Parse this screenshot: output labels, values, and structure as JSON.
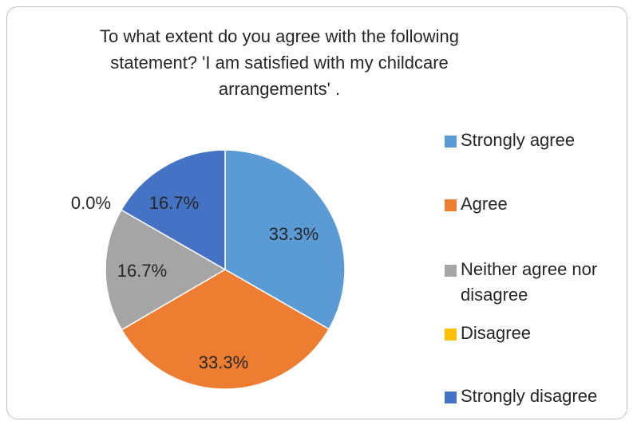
{
  "chart_data": {
    "type": "pie",
    "title_lines": [
      "To what extent do you agree with the following",
      "statement? 'I am satisfied with my childcare",
      "arrangements' ."
    ],
    "categories": [
      "Strongly agree",
      "Agree",
      "Neither agree nor disagree",
      "Disagree",
      "Strongly disagree"
    ],
    "values": [
      33.3,
      33.3,
      16.7,
      0.0,
      16.7
    ],
    "data_labels": [
      "33.3%",
      "33.3%",
      "16.7%",
      "0.0%",
      "16.7%"
    ],
    "colors": [
      "#5b9bd5",
      "#ed7d31",
      "#a5a5a5",
      "#ffc000",
      "#4472c4"
    ],
    "legend_position": "right",
    "start_angle_deg": 0,
    "direction": "clockwise"
  }
}
